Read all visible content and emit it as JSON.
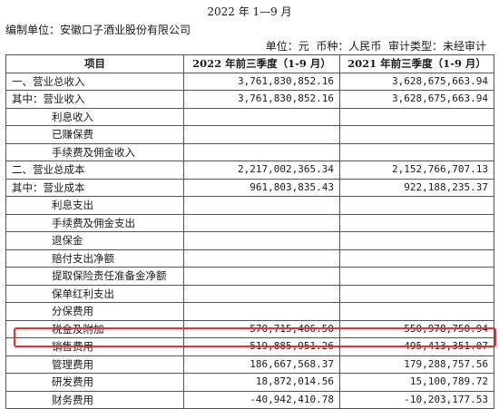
{
  "header": {
    "period": "2022 年 1—9 月",
    "company": "编制单位：安徽口子酒业股份有限公司",
    "meta": "单位：元  币种：人民币  审计类型：未经审计"
  },
  "table": {
    "columns": [
      "项目",
      "2022 年前三季度（1-9 月）",
      "2021 年前三季度（1-9 月）"
    ],
    "rows": [
      {
        "item": "一、营业总收入",
        "v2022": "3,761,830,852.16",
        "v2021": "3,628,675,663.94"
      },
      {
        "item": "其中：营业收入",
        "v2022": "3,761,830,852.16",
        "v2021": "3,628,675,663.94"
      },
      {
        "item": "利息收入",
        "v2022": "",
        "v2021": ""
      },
      {
        "item": "已赚保费",
        "v2022": "",
        "v2021": ""
      },
      {
        "item": "手续费及佣金收入",
        "v2022": "",
        "v2021": ""
      },
      {
        "item": "二、营业总成本",
        "v2022": "2,217,002,365.34",
        "v2021": "2,152,766,707.13"
      },
      {
        "item": "其中：营业成本",
        "v2022": "961,803,835.43",
        "v2021": "922,188,235.37"
      },
      {
        "item": "利息支出",
        "v2022": "",
        "v2021": ""
      },
      {
        "item": "手续费及佣金支出",
        "v2022": "",
        "v2021": ""
      },
      {
        "item": "退保金",
        "v2022": "",
        "v2021": ""
      },
      {
        "item": "赔付支出净额",
        "v2022": "",
        "v2021": ""
      },
      {
        "item": "提取保险责任准备金净额",
        "v2022": "",
        "v2021": ""
      },
      {
        "item": "保单红利支出",
        "v2022": "",
        "v2021": ""
      },
      {
        "item": "分保费用",
        "v2022": "",
        "v2021": ""
      },
      {
        "item": "税金及附加",
        "v2022": "570,715,406.50",
        "v2021": "550,978,750.94"
      },
      {
        "item": "销售费用",
        "v2022": "519,885,951.26",
        "v2021": "495,413,351.07"
      },
      {
        "item": "管理费用",
        "v2022": "186,667,568.37",
        "v2021": "179,288,757.56"
      },
      {
        "item": "研发费用",
        "v2022": "18,872,014.56",
        "v2021": "15,100,789.72"
      },
      {
        "item": "财务费用",
        "v2022": "-40,942,410.78",
        "v2021": "-10,203,177.53"
      }
    ]
  },
  "highlight": {
    "row_item": "销售费用",
    "color": "#e8302e"
  }
}
